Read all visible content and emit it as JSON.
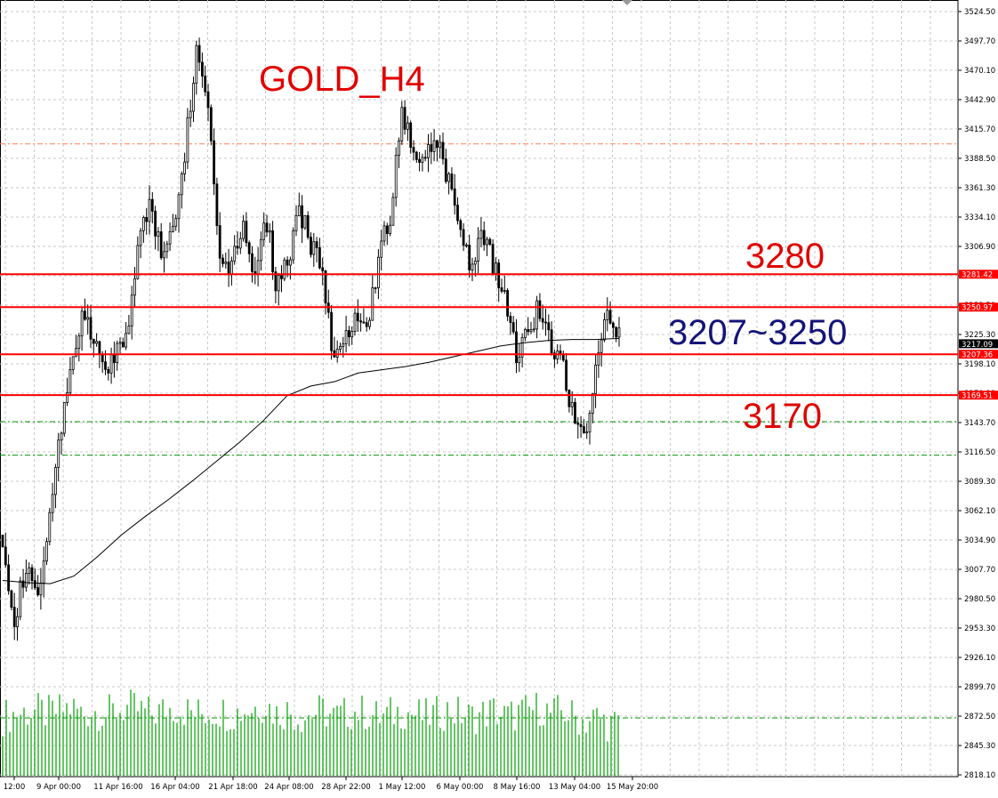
{
  "chart_data": {
    "type": "candlestick",
    "symbol_label": "GOLD_H4",
    "colors": {
      "candle": "#000000",
      "moving_average": "#000000",
      "volume": "#00a000",
      "level_line": "#ff0000",
      "label_red": "#e00000",
      "label_blue": "#14147a",
      "dashed_red": "#ff7f50",
      "dashed_green": "#009900",
      "grid": "#c8c8c8",
      "price_tag_bg": "#ff0000",
      "current_tag_bg": "#000000"
    },
    "y_axis": {
      "range": [
        2818.1,
        3524.5
      ],
      "ticks": [
        "3524.50",
        "3497.70",
        "3470.10",
        "3442.90",
        "3415.70",
        "3388.50",
        "3361.30",
        "3334.10",
        "3306.90",
        "3279.70",
        "3252.50",
        "3225.30",
        "3198.10",
        "3170.90",
        "3143.70",
        "3116.50",
        "3089.30",
        "3062.10",
        "3034.90",
        "3007.70",
        "2980.50",
        "2953.30",
        "2926.10",
        "2899.70",
        "2872.50",
        "2845.30",
        "2818.10"
      ]
    },
    "x_axis": {
      "ticks": [
        "12:00",
        "9 Apr 00:00",
        "11 Apr 16:00",
        "16 Apr 04:00",
        "21 Apr 18:00",
        "24 Apr 08:00",
        "28 Apr 22:00",
        "1 May 12:00",
        "6 May 00:00",
        "8 May 16:00",
        "13 May 04:00",
        "15 May 20:00"
      ]
    },
    "levels": [
      {
        "value": 3281.42,
        "tag": "3281.42",
        "label": "3280",
        "label_color": "red"
      },
      {
        "value": 3250.97,
        "tag": "3250.97",
        "label": "",
        "label_color": "red"
      },
      {
        "value": 3207.36,
        "tag": "3207.36",
        "label": "3207~3250",
        "label_color": "blue"
      },
      {
        "value": 3169.51,
        "tag": "3169.51",
        "label": "3170",
        "label_color": "red"
      }
    ],
    "current_price": {
      "value": 3217.09,
      "tag": "3217.09"
    },
    "dashed_lines": [
      {
        "value": 3402.0,
        "color": "dashed_red"
      },
      {
        "value": 3145.0,
        "color": "dashed_green"
      },
      {
        "value": 3114.0,
        "color": "dashed_green"
      }
    ],
    "price_path": [
      3040,
      2960,
      3010,
      2980,
      3040,
      3130,
      3200,
      3240,
      3220,
      3190,
      3210,
      3230,
      3320,
      3350,
      3290,
      3330,
      3400,
      3490,
      3440,
      3300,
      3290,
      3330,
      3280,
      3340,
      3270,
      3290,
      3340,
      3310,
      3290,
      3200,
      3220,
      3250,
      3240,
      3300,
      3340,
      3430,
      3400,
      3390,
      3410,
      3370,
      3330,
      3290,
      3320,
      3290,
      3260,
      3210,
      3230,
      3250,
      3220,
      3200,
      3150,
      3130,
      3200,
      3240,
      3230
    ],
    "moving_average": [
      2998,
      2996,
      2995,
      3002,
      3020,
      3040,
      3057,
      3073,
      3090,
      3108,
      3126,
      3146,
      3169,
      3178,
      3182,
      3190,
      3193,
      3196,
      3200,
      3205,
      3210,
      3215,
      3218,
      3220,
      3221,
      3221,
      3222
    ],
    "volume_profile": [
      0.72,
      0.78,
      0.81,
      0.84,
      0.78,
      0.84,
      0.9,
      0.78,
      0.84,
      0.78,
      0.84,
      0.9,
      0.84,
      0.78,
      0.84,
      0.9,
      0.84,
      0.78,
      0.81,
      0.84,
      0.78,
      0.84,
      0.9,
      0.96,
      0.78,
      0.84,
      0.72,
      0.78,
      0.84,
      0.72,
      0.78,
      0.84,
      0.78,
      0.72,
      0.78,
      0.84,
      0.78,
      0.72,
      0.78,
      0.84,
      0.78,
      0.72,
      0.78,
      0.84,
      0.72,
      0.78,
      0.84,
      0.9,
      0.78,
      0.84,
      0.72,
      0.66,
      0.72,
      0.6,
      0.54
    ]
  }
}
